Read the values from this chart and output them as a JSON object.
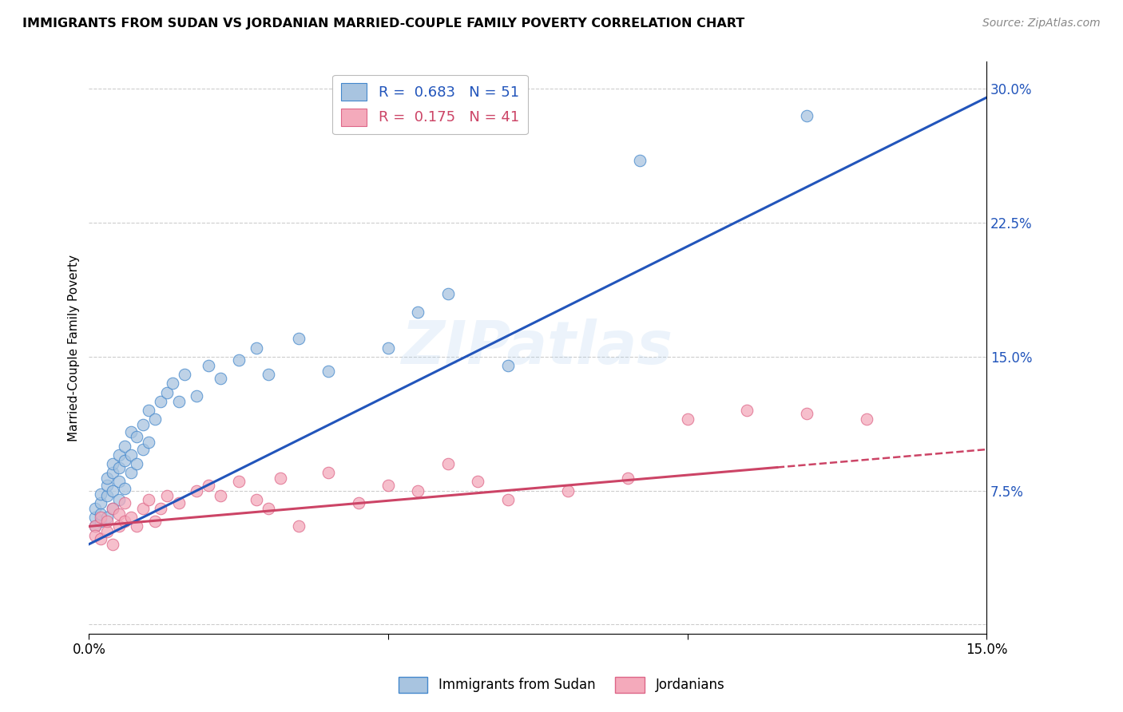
{
  "title": "IMMIGRANTS FROM SUDAN VS JORDANIAN MARRIED-COUPLE FAMILY POVERTY CORRELATION CHART",
  "source": "Source: ZipAtlas.com",
  "ylabel": "Married-Couple Family Poverty",
  "legend_labels": [
    "Immigrants from Sudan",
    "Jordanians"
  ],
  "blue_R": "0.683",
  "blue_N": "51",
  "pink_R": "0.175",
  "pink_N": "41",
  "blue_scatter_color": "#A8C4E0",
  "pink_scatter_color": "#F4AABB",
  "blue_edge_color": "#4488CC",
  "pink_edge_color": "#DD6688",
  "blue_line_color": "#2255BB",
  "pink_line_color": "#CC4466",
  "xlim": [
    0.0,
    0.15
  ],
  "ylim": [
    -0.005,
    0.315
  ],
  "blue_scatter_x": [
    0.001,
    0.001,
    0.001,
    0.002,
    0.002,
    0.002,
    0.002,
    0.003,
    0.003,
    0.003,
    0.003,
    0.004,
    0.004,
    0.004,
    0.004,
    0.005,
    0.005,
    0.005,
    0.005,
    0.006,
    0.006,
    0.006,
    0.007,
    0.007,
    0.007,
    0.008,
    0.008,
    0.009,
    0.009,
    0.01,
    0.01,
    0.011,
    0.012,
    0.013,
    0.014,
    0.015,
    0.016,
    0.018,
    0.02,
    0.022,
    0.025,
    0.028,
    0.03,
    0.035,
    0.04,
    0.05,
    0.055,
    0.06,
    0.07,
    0.092,
    0.12
  ],
  "blue_scatter_y": [
    0.055,
    0.06,
    0.065,
    0.058,
    0.062,
    0.068,
    0.073,
    0.06,
    0.072,
    0.078,
    0.082,
    0.065,
    0.075,
    0.085,
    0.09,
    0.07,
    0.08,
    0.088,
    0.095,
    0.076,
    0.092,
    0.1,
    0.085,
    0.095,
    0.108,
    0.09,
    0.105,
    0.098,
    0.112,
    0.102,
    0.12,
    0.115,
    0.125,
    0.13,
    0.135,
    0.125,
    0.14,
    0.128,
    0.145,
    0.138,
    0.148,
    0.155,
    0.14,
    0.16,
    0.142,
    0.155,
    0.175,
    0.185,
    0.145,
    0.26,
    0.285
  ],
  "pink_scatter_x": [
    0.001,
    0.001,
    0.002,
    0.002,
    0.003,
    0.003,
    0.004,
    0.004,
    0.005,
    0.005,
    0.006,
    0.006,
    0.007,
    0.008,
    0.009,
    0.01,
    0.011,
    0.012,
    0.013,
    0.015,
    0.018,
    0.02,
    0.022,
    0.025,
    0.028,
    0.03,
    0.032,
    0.035,
    0.04,
    0.045,
    0.05,
    0.055,
    0.06,
    0.065,
    0.07,
    0.08,
    0.09,
    0.1,
    0.11,
    0.12,
    0.13
  ],
  "pink_scatter_y": [
    0.055,
    0.05,
    0.048,
    0.06,
    0.052,
    0.058,
    0.045,
    0.065,
    0.055,
    0.062,
    0.058,
    0.068,
    0.06,
    0.055,
    0.065,
    0.07,
    0.058,
    0.065,
    0.072,
    0.068,
    0.075,
    0.078,
    0.072,
    0.08,
    0.07,
    0.065,
    0.082,
    0.055,
    0.085,
    0.068,
    0.078,
    0.075,
    0.09,
    0.08,
    0.07,
    0.075,
    0.082,
    0.115,
    0.12,
    0.118,
    0.115
  ],
  "grid_color": "#CCCCCC",
  "background_color": "#FFFFFF",
  "ytick_positions": [
    0.0,
    0.075,
    0.15,
    0.225,
    0.3
  ],
  "ytick_labels": [
    "",
    "7.5%",
    "15.0%",
    "22.5%",
    "30.0%"
  ],
  "xtick_positions": [
    0.0,
    0.05,
    0.1,
    0.15
  ],
  "xtick_labels": [
    "0.0%",
    "",
    "",
    "15.0%"
  ],
  "watermark_text": "ZIPatlas"
}
